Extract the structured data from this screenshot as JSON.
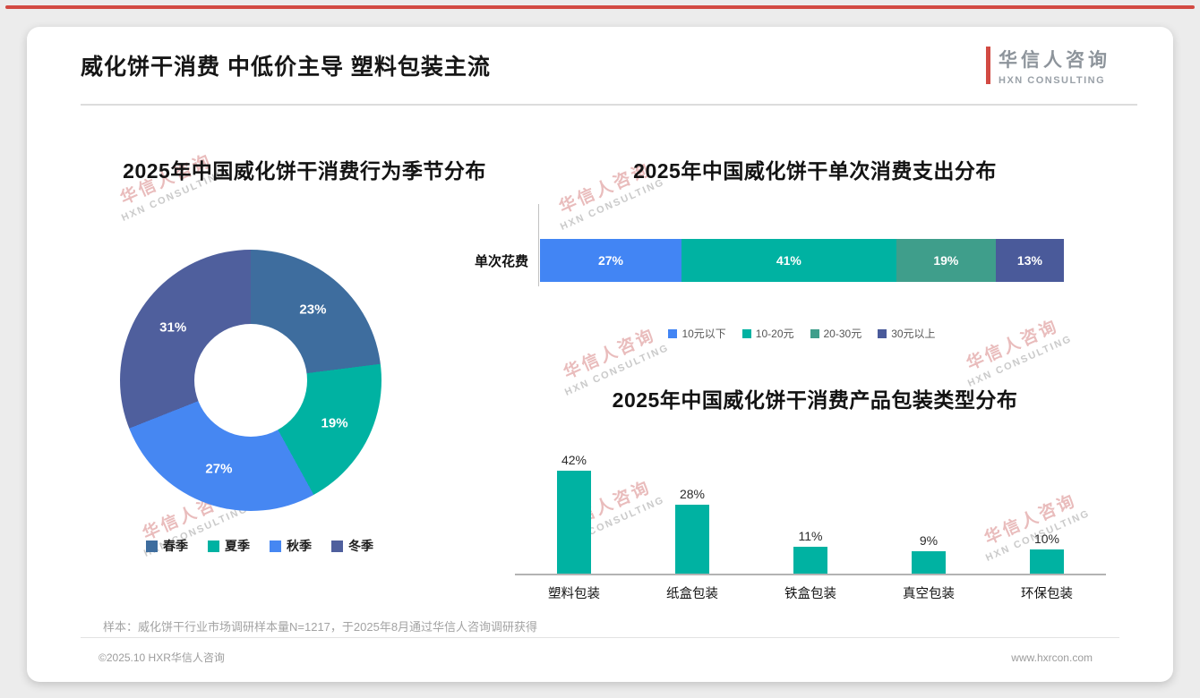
{
  "page": {
    "title": "威化饼干消费 中低价主导 塑料包装主流",
    "logo_cn": "华信人咨询",
    "logo_en": "HXN CONSULTING",
    "watermark_cn": "华信人咨询",
    "watermark_en": "HXN CONSULTING",
    "sample_note": "样本：威化饼干行业市场调研样本量N=1217，于2025年8月通过华信人咨询调研获得",
    "footer_left": "©2025.10 HXR华信人咨询",
    "footer_right": "www.hxrcon.com",
    "accent_red": "#d24a43"
  },
  "chart_data": [
    {
      "type": "pie",
      "subtype": "donut",
      "title": "2025年中国威化饼干消费行为季节分布",
      "categories": [
        "春季",
        "夏季",
        "秋季",
        "冬季"
      ],
      "values": [
        23,
        19,
        27,
        31
      ],
      "colors": [
        "#3e6d9e",
        "#00b2a2",
        "#4687f2",
        "#4f5f9d"
      ],
      "unit": "%",
      "legend_position": "bottom"
    },
    {
      "type": "bar",
      "subtype": "stacked-horizontal",
      "title": "2025年中国威化饼干单次消费支出分布",
      "row_label": "单次花费",
      "categories": [
        "10元以下",
        "10-20元",
        "20-30元",
        "30元以上"
      ],
      "values": [
        27,
        41,
        19,
        13
      ],
      "colors": [
        "#4285f4",
        "#00b2a2",
        "#3f9e8b",
        "#4a5a9a"
      ],
      "unit": "%",
      "xlim": [
        0,
        100
      ],
      "legend_position": "bottom"
    },
    {
      "type": "bar",
      "subtype": "vertical",
      "title": "2025年中国威化饼干消费产品包装类型分布",
      "categories": [
        "塑料包装",
        "纸盒包装",
        "铁盒包装",
        "真空包装",
        "环保包装"
      ],
      "values": [
        42,
        28,
        11,
        9,
        10
      ],
      "bar_color": "#00b2a2",
      "unit": "%",
      "ylim": [
        0,
        50
      ],
      "grid": false
    }
  ]
}
